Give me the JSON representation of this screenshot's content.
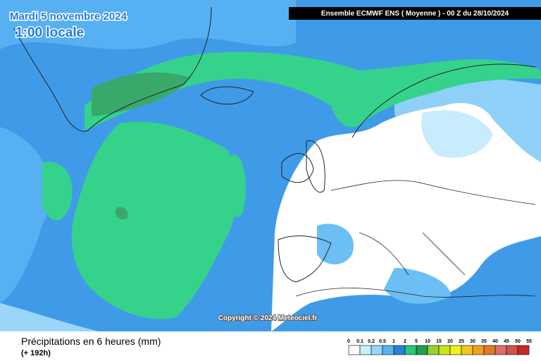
{
  "header": {
    "date": "Mardi 5 novembre 2024",
    "time": "1:00 locale",
    "run_info": "Ensemble ECMWF ENS  ( Moyenne )  -  00 Z du 28/10/2024"
  },
  "copyright": "Copyright © 2024 Meteociel.fr",
  "footer": {
    "title": "Précipitations en 6 heures (mm)",
    "subtitle": "(+ 192h)"
  },
  "legend": {
    "labels": [
      "0",
      "0.1",
      "0.2",
      "0.5",
      "1",
      "2",
      "5",
      "10",
      "15",
      "20",
      "25",
      "30",
      "35",
      "40",
      "45",
      "50",
      "55"
    ],
    "colors": [
      "#ffffff",
      "#c8f0ff",
      "#96d7fa",
      "#5ab4f0",
      "#2882dc",
      "#28c878",
      "#1ea050",
      "#96d232",
      "#c8e614",
      "#f0f01e",
      "#f0c81e",
      "#f0a01e",
      "#e67828",
      "#dc6e6e",
      "#d25050",
      "#c82828"
    ]
  }
}
